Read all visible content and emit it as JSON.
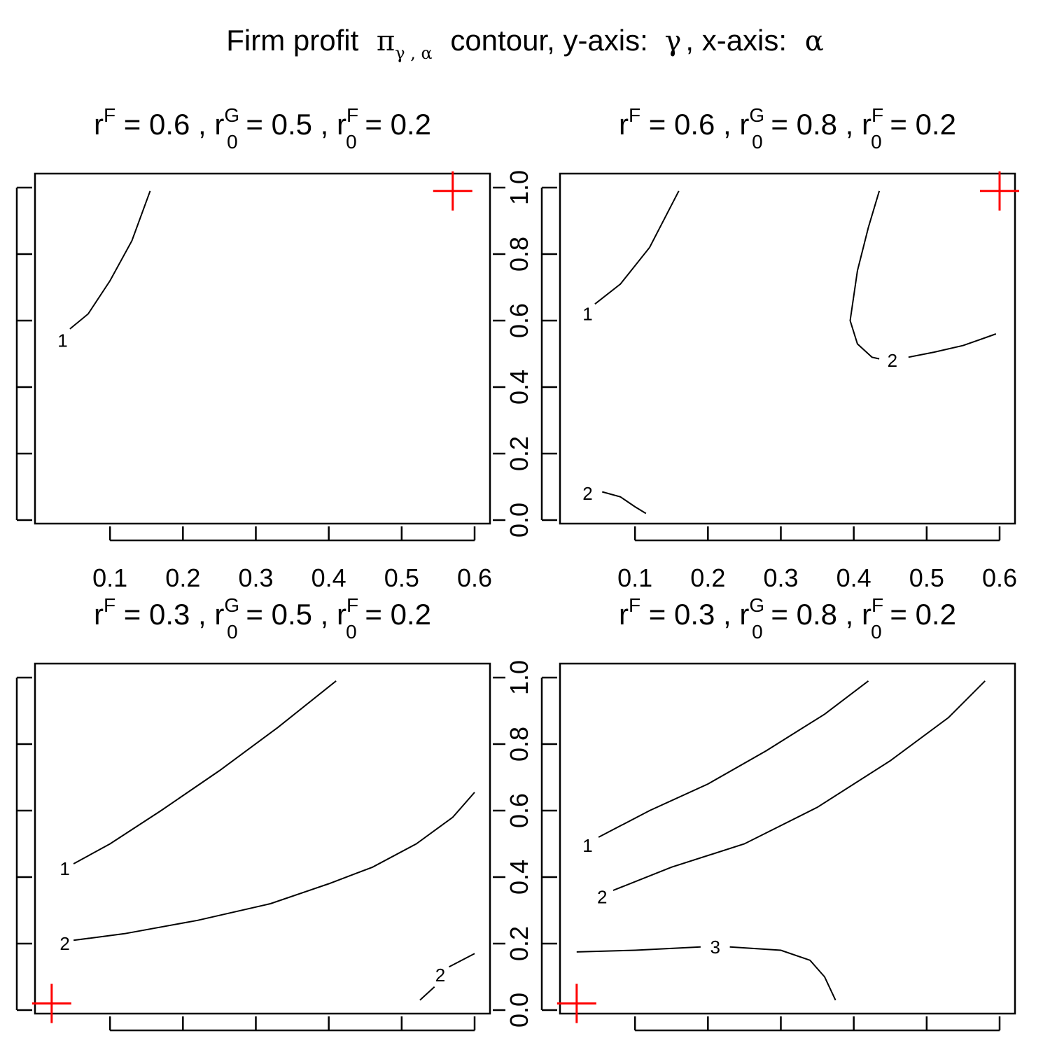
{
  "main_title": {
    "prefix": "Firm profit",
    "pi_symbol": "π",
    "pi_subscript": "γ , α",
    "middle": "contour,  y-axis:",
    "y_symbol": "γ",
    "x_part": ", x-axis:",
    "x_symbol": "α"
  },
  "chart_data": [
    {
      "type": "contour",
      "title_parts": {
        "rF": "0.6",
        "r0G": "0.5",
        "r0F": "0.2"
      },
      "xlim": [
        0.0,
        0.6
      ],
      "ylim": [
        0.0,
        1.0
      ],
      "x_ticks": [
        "0.1",
        "0.2",
        "0.3",
        "0.4",
        "0.5",
        "0.6"
      ],
      "y_ticks": [
        "0.0",
        "0.2",
        "0.4",
        "0.6",
        "0.8",
        "1.0"
      ],
      "show_x_tick_labels": true,
      "show_y_tick_labels": true,
      "marker": {
        "symbol": "+",
        "color": "#ff0000",
        "x": 0.57,
        "y": 0.99
      },
      "contours": [
        {
          "level": "1",
          "label_at": [
            0.035,
            0.54
          ],
          "points": [
            [
              0.045,
              0.575
            ],
            [
              0.07,
              0.62
            ],
            [
              0.1,
              0.72
            ],
            [
              0.13,
              0.84
            ],
            [
              0.155,
              0.99
            ]
          ]
        }
      ]
    },
    {
      "type": "contour",
      "title_parts": {
        "rF": "0.6",
        "r0G": "0.8",
        "r0F": "0.2"
      },
      "xlim": [
        0.0,
        0.6
      ],
      "ylim": [
        0.0,
        1.0
      ],
      "x_ticks": [
        "0.1",
        "0.2",
        "0.3",
        "0.4",
        "0.5",
        "0.6"
      ],
      "y_ticks": [
        "0.0",
        "0.2",
        "0.4",
        "0.6",
        "0.8",
        "1.0"
      ],
      "show_x_tick_labels": true,
      "show_y_tick_labels": false,
      "marker": {
        "symbol": "+",
        "color": "#ff0000",
        "x": 0.6,
        "y": 0.99
      },
      "contours": [
        {
          "level": "1",
          "label_at": [
            0.035,
            0.62
          ],
          "points": [
            [
              0.045,
              0.65
            ],
            [
              0.08,
              0.71
            ],
            [
              0.12,
              0.82
            ],
            [
              0.16,
              0.99
            ]
          ]
        },
        {
          "level": "2",
          "label_at": [
            0.035,
            0.08
          ],
          "points": [
            [
              0.055,
              0.085
            ],
            [
              0.08,
              0.07
            ],
            [
              0.1,
              0.04
            ],
            [
              0.115,
              0.02
            ]
          ]
        },
        {
          "level": "2",
          "label_at": [
            0.453,
            0.48
          ],
          "points": [
            [
              0.435,
              0.99
            ],
            [
              0.42,
              0.88
            ],
            [
              0.405,
              0.75
            ],
            [
              0.395,
              0.6
            ],
            [
              0.405,
              0.53
            ],
            [
              0.425,
              0.49
            ],
            [
              0.435,
              0.485
            ]
          ]
        },
        {
          "level": "2",
          "label_at": [
            0.453,
            0.48
          ],
          "points": [
            [
              0.475,
              0.49
            ],
            [
              0.51,
              0.505
            ],
            [
              0.55,
              0.525
            ],
            [
              0.595,
              0.56
            ]
          ]
        }
      ]
    },
    {
      "type": "contour",
      "title_parts": {
        "rF": "0.3",
        "r0G": "0.5",
        "r0F": "0.2"
      },
      "xlim": [
        0.0,
        0.6
      ],
      "ylim": [
        0.0,
        1.0
      ],
      "x_ticks": [
        "0.1",
        "0.2",
        "0.3",
        "0.4",
        "0.5",
        "0.6"
      ],
      "y_ticks": [
        "0.0",
        "0.2",
        "0.4",
        "0.6",
        "0.8",
        "1.0"
      ],
      "show_x_tick_labels": false,
      "show_y_tick_labels": true,
      "marker": {
        "symbol": "+",
        "color": "#ff0000",
        "x": 0.02,
        "y": 0.02
      },
      "contours": [
        {
          "level": "1",
          "label_at": [
            0.038,
            0.425
          ],
          "points": [
            [
              0.05,
              0.44
            ],
            [
              0.1,
              0.5
            ],
            [
              0.17,
              0.6
            ],
            [
              0.25,
              0.72
            ],
            [
              0.33,
              0.85
            ],
            [
              0.41,
              0.99
            ]
          ]
        },
        {
          "level": "2",
          "label_at": [
            0.038,
            0.2
          ],
          "points": [
            [
              0.05,
              0.21
            ],
            [
              0.12,
              0.23
            ],
            [
              0.22,
              0.27
            ],
            [
              0.32,
              0.32
            ],
            [
              0.4,
              0.38
            ],
            [
              0.46,
              0.43
            ],
            [
              0.52,
              0.5
            ],
            [
              0.57,
              0.58
            ],
            [
              0.6,
              0.655
            ]
          ]
        },
        {
          "level": "2",
          "label_at": [
            0.553,
            0.105
          ],
          "points": [
            [
              0.525,
              0.03
            ],
            [
              0.545,
              0.07
            ]
          ]
        },
        {
          "level": "2",
          "label_at": [
            0.553,
            0.105
          ],
          "points": [
            [
              0.565,
              0.13
            ],
            [
              0.6,
              0.17
            ]
          ]
        }
      ]
    },
    {
      "type": "contour",
      "title_parts": {
        "rF": "0.3",
        "r0G": "0.8",
        "r0F": "0.2"
      },
      "xlim": [
        0.0,
        0.6
      ],
      "ylim": [
        0.0,
        1.0
      ],
      "x_ticks": [
        "0.1",
        "0.2",
        "0.3",
        "0.4",
        "0.5",
        "0.6"
      ],
      "y_ticks": [
        "0.0",
        "0.2",
        "0.4",
        "0.6",
        "0.8",
        "1.0"
      ],
      "show_x_tick_labels": false,
      "show_y_tick_labels": false,
      "marker": {
        "symbol": "+",
        "color": "#ff0000",
        "x": 0.02,
        "y": 0.02
      },
      "contours": [
        {
          "level": "1",
          "label_at": [
            0.035,
            0.495
          ],
          "points": [
            [
              0.05,
              0.52
            ],
            [
              0.12,
              0.6
            ],
            [
              0.2,
              0.68
            ],
            [
              0.28,
              0.78
            ],
            [
              0.36,
              0.89
            ],
            [
              0.42,
              0.99
            ]
          ]
        },
        {
          "level": "2",
          "label_at": [
            0.055,
            0.34
          ],
          "points": [
            [
              0.07,
              0.36
            ],
            [
              0.15,
              0.43
            ],
            [
              0.25,
              0.5
            ],
            [
              0.35,
              0.61
            ],
            [
              0.45,
              0.75
            ],
            [
              0.53,
              0.88
            ],
            [
              0.58,
              0.99
            ]
          ]
        },
        {
          "level": "3",
          "label_at": [
            0.21,
            0.19
          ],
          "points": [
            [
              0.02,
              0.175
            ],
            [
              0.1,
              0.18
            ],
            [
              0.19,
              0.19
            ]
          ]
        },
        {
          "level": "3",
          "label_at": [
            0.21,
            0.19
          ],
          "points": [
            [
              0.23,
              0.19
            ],
            [
              0.3,
              0.18
            ],
            [
              0.34,
              0.15
            ],
            [
              0.36,
              0.1
            ],
            [
              0.375,
              0.03
            ]
          ]
        }
      ]
    }
  ]
}
